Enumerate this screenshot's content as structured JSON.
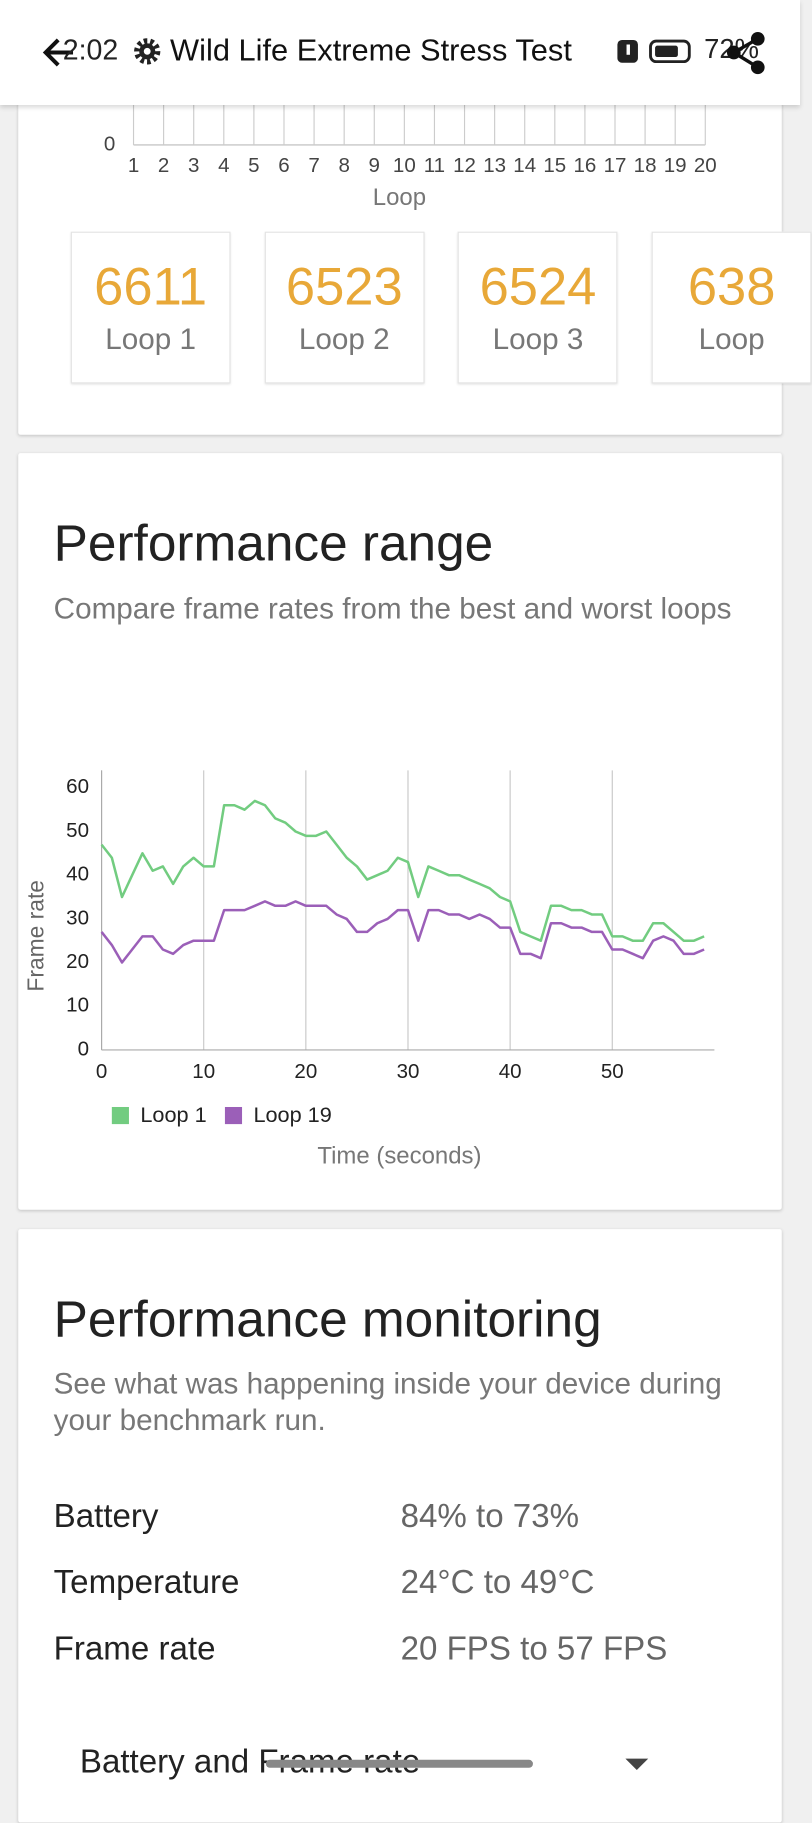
{
  "status_bar": {
    "time": "2:02",
    "battery": "72%"
  },
  "header": {
    "title": "Wild Life Extreme Stress Test"
  },
  "loop_axis": {
    "categories": [
      "1",
      "2",
      "3",
      "4",
      "5",
      "6",
      "7",
      "8",
      "9",
      "10",
      "11",
      "12",
      "13",
      "14",
      "15",
      "16",
      "17",
      "18",
      "19",
      "20"
    ],
    "ytick": "0",
    "xlabel": "Loop"
  },
  "loop_scores": [
    {
      "score": "6611",
      "label": "Loop 1"
    },
    {
      "score": "6523",
      "label": "Loop 2"
    },
    {
      "score": "6524",
      "label": "Loop 3"
    },
    {
      "score": "638",
      "label": "Loop"
    }
  ],
  "performance_range": {
    "title": "Performance range",
    "subtitle": "Compare frame rates from the best and worst loops"
  },
  "chart_data": {
    "type": "line",
    "x": [
      0,
      1,
      2,
      3,
      4,
      5,
      6,
      7,
      8,
      9,
      10,
      11,
      12,
      13,
      14,
      15,
      16,
      17,
      18,
      19,
      20,
      21,
      22,
      23,
      24,
      25,
      26,
      27,
      28,
      29,
      30,
      31,
      32,
      33,
      34,
      35,
      36,
      37,
      38,
      39,
      40,
      41,
      42,
      43,
      44,
      45,
      46,
      47,
      48,
      49,
      50,
      51,
      52,
      53,
      54,
      55,
      56,
      57,
      58,
      59
    ],
    "series": [
      {
        "name": "Loop 1",
        "color": "#72cc80",
        "values": [
          47,
          44,
          35,
          40,
          45,
          41,
          42,
          38,
          42,
          44,
          42,
          42,
          56,
          56,
          55,
          57,
          56,
          53,
          52,
          50,
          49,
          49,
          50,
          47,
          44,
          42,
          39,
          40,
          41,
          44,
          43,
          35,
          42,
          41,
          40,
          40,
          39,
          38,
          37,
          35,
          34,
          27,
          26,
          25,
          33,
          33,
          32,
          32,
          31,
          31,
          26,
          26,
          25,
          25,
          29,
          29,
          27,
          25,
          25,
          26
        ]
      },
      {
        "name": "Loop 19",
        "color": "#9b5fb8",
        "values": [
          27,
          24,
          20,
          23,
          26,
          26,
          23,
          22,
          24,
          25,
          25,
          25,
          32,
          32,
          32,
          33,
          34,
          33,
          33,
          34,
          33,
          33,
          33,
          31,
          30,
          27,
          27,
          29,
          30,
          32,
          32,
          25,
          32,
          32,
          31,
          31,
          30,
          31,
          30,
          28,
          28,
          22,
          22,
          21,
          29,
          29,
          28,
          28,
          27,
          27,
          23,
          23,
          22,
          21,
          25,
          26,
          25,
          22,
          22,
          23
        ]
      }
    ],
    "xlim": [
      0,
      60
    ],
    "ylim": [
      0,
      64
    ],
    "xticks": [
      0,
      10,
      20,
      30,
      40,
      50
    ],
    "yticks": [
      0,
      10,
      20,
      30,
      40,
      50,
      60
    ],
    "xlabel": "Time (seconds)",
    "ylabel": "Frame rate",
    "grid": "x",
    "legend": "bottom-left"
  },
  "performance_monitoring": {
    "title": "Performance monitoring",
    "subtitle": "See what was happening inside your device during your benchmark run.",
    "rows": [
      [
        "Battery",
        "84% to 73%"
      ],
      [
        "Temperature",
        "24°C to 49°C"
      ],
      [
        "Frame rate",
        "20 FPS to 57 FPS"
      ]
    ]
  },
  "dropdown": {
    "label": "Battery and Frame rate"
  }
}
